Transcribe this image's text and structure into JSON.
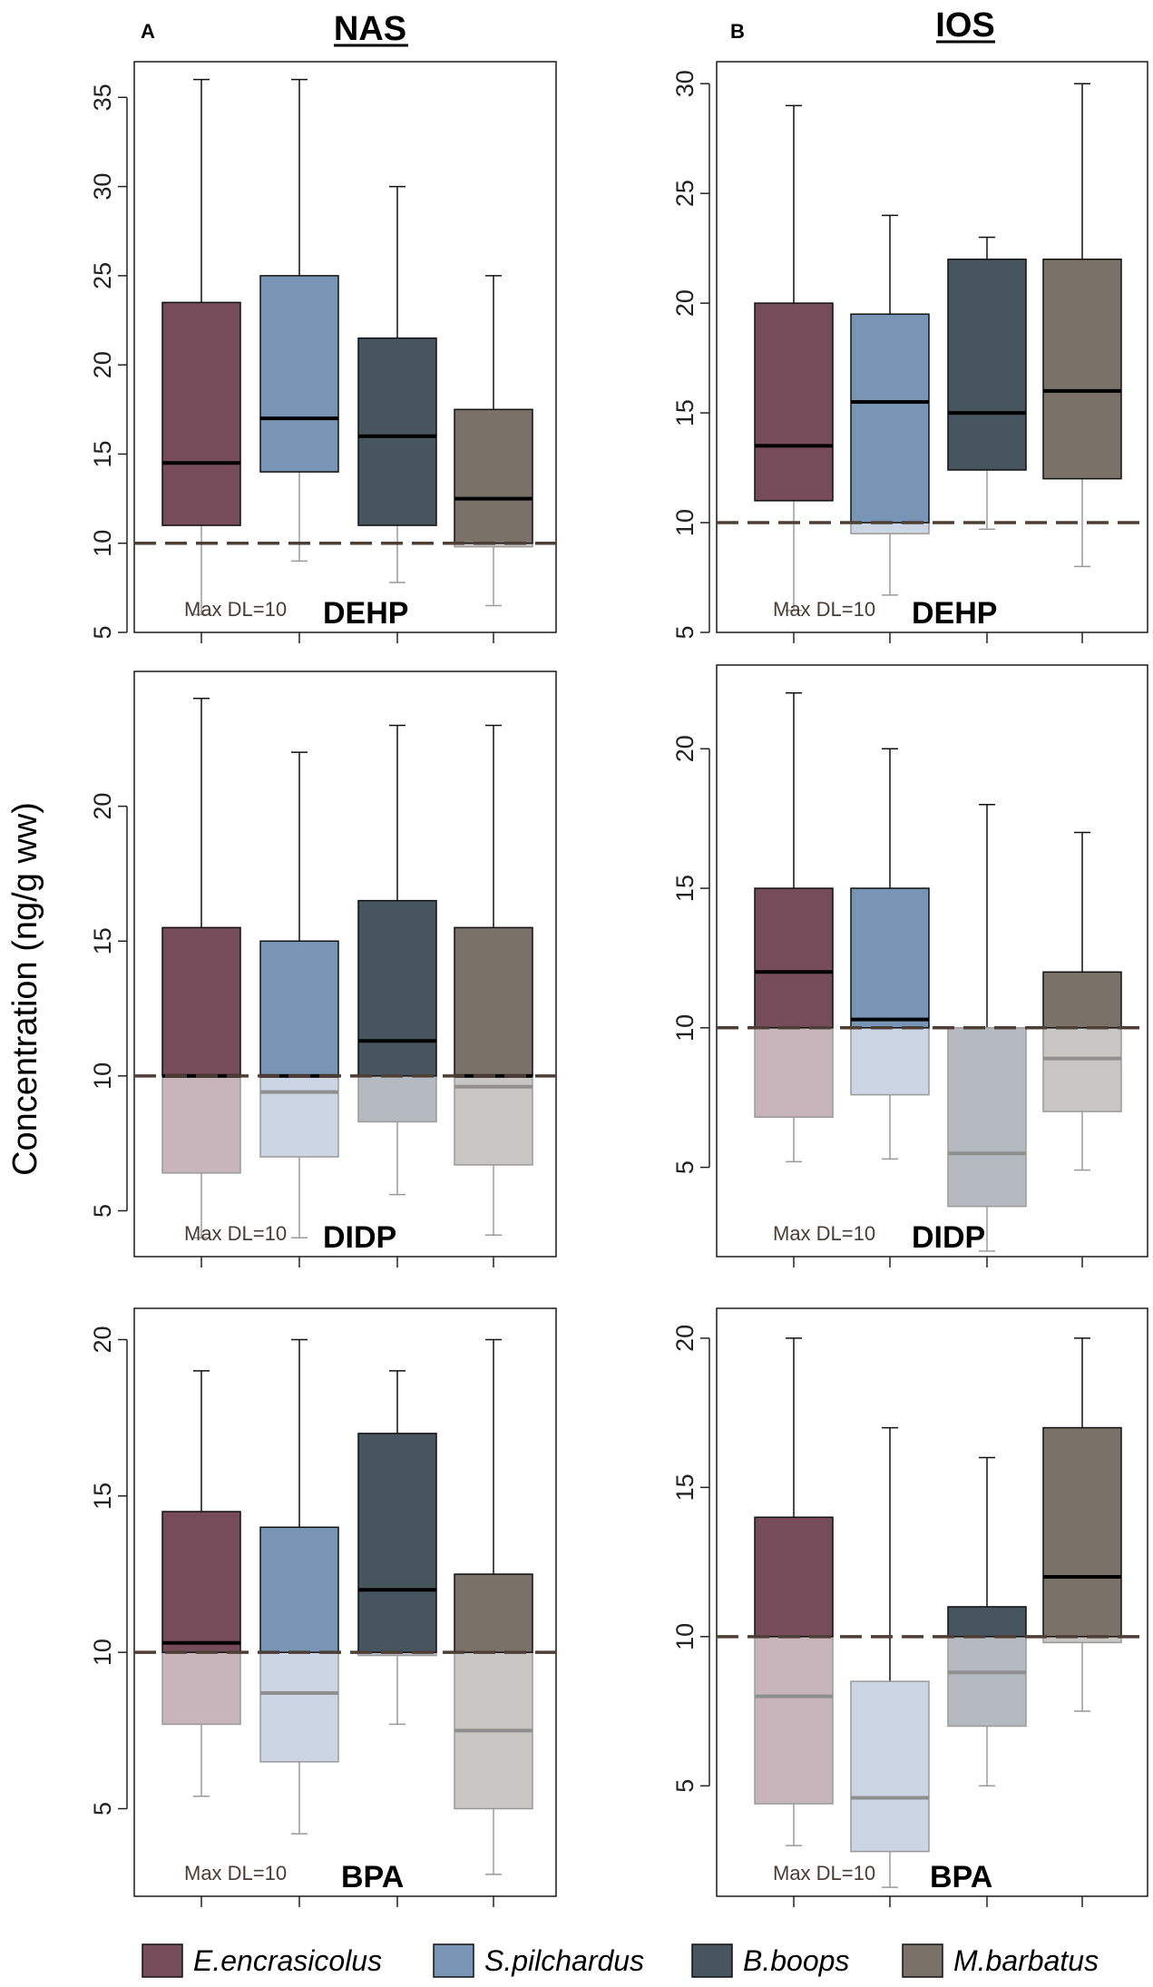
{
  "figure": {
    "ylabel": "Concentration (ng/g ww)",
    "columns": [
      {
        "letter": "A",
        "title": "NAS"
      },
      {
        "letter": "B",
        "title": "IOS"
      }
    ],
    "legend": [
      {
        "name": "E.encrasicolus",
        "color": "#774c5a"
      },
      {
        "name": "S.pilchardus",
        "color": "#7895b5"
      },
      {
        "name": "B.boops",
        "color": "#47555f"
      },
      {
        "name": "M.barbatus",
        "color": "#7a7168"
      }
    ],
    "colors": {
      "detection_limit_line": "#4d3f36",
      "below_dl_fills": [
        "#c8b4bb",
        "#cbd5e3",
        "#b4babf",
        "#c8c6c2"
      ],
      "below_dl_stroke": "#9a9a9a"
    }
  },
  "chart_data": [
    {
      "type": "boxplot",
      "region": "NAS",
      "compound": "DEHP",
      "dl_label": "Max DL=10",
      "detection_limit": 10,
      "ylim": [
        5,
        37
      ],
      "yticks": [
        5,
        10,
        15,
        20,
        25,
        30,
        35
      ],
      "series": [
        {
          "name": "E.encrasicolus",
          "low": 6,
          "q1": 11,
          "median": 14.5,
          "q3": 23.5,
          "high": 36
        },
        {
          "name": "S.pilchardus",
          "low": 9,
          "q1": 14,
          "median": 17,
          "q3": 25,
          "high": 36
        },
        {
          "name": "B.boops",
          "low": 7.8,
          "q1": 11,
          "median": 16,
          "q3": 21.5,
          "high": 30
        },
        {
          "name": "M.barbatus",
          "low": 6.5,
          "q1": 9.8,
          "median": 12.5,
          "q3": 17.5,
          "high": 25
        }
      ]
    },
    {
      "type": "boxplot",
      "region": "IOS",
      "compound": "DEHP",
      "dl_label": "Max DL=10",
      "detection_limit": 10,
      "ylim": [
        5,
        31
      ],
      "yticks": [
        5,
        10,
        15,
        20,
        25,
        30
      ],
      "series": [
        {
          "name": "E.encrasicolus",
          "low": 6,
          "q1": 11,
          "median": 13.5,
          "q3": 20,
          "high": 29
        },
        {
          "name": "S.pilchardus",
          "low": 6.7,
          "q1": 9.5,
          "median": 15.5,
          "q3": 19.5,
          "high": 24
        },
        {
          "name": "B.boops",
          "low": 9.7,
          "q1": 12.4,
          "median": 15,
          "q3": 22,
          "high": 23
        },
        {
          "name": "M.barbatus",
          "low": 8,
          "q1": 12,
          "median": 16,
          "q3": 22,
          "high": 30
        }
      ]
    },
    {
      "type": "boxplot",
      "region": "NAS",
      "compound": "DIDP",
      "dl_label": "Max DL=10",
      "detection_limit": 10,
      "ylim": [
        3.3,
        25
      ],
      "yticks": [
        5,
        10,
        15,
        20
      ],
      "series": [
        {
          "name": "E.encrasicolus",
          "low": 4,
          "q1": 6.4,
          "median": 10,
          "q3": 15.5,
          "high": 24,
          "below_median": 10
        },
        {
          "name": "S.pilchardus",
          "low": 4,
          "q1": 7,
          "median": 10,
          "q3": 15,
          "high": 22,
          "below_median": 9.4
        },
        {
          "name": "B.boops",
          "low": 5.6,
          "q1": 8.3,
          "median": 11.3,
          "q3": 16.5,
          "high": 23,
          "below_median": 10
        },
        {
          "name": "M.barbatus",
          "low": 4.1,
          "q1": 6.7,
          "median": 10,
          "q3": 15.5,
          "high": 23,
          "below_median": 9.6
        }
      ]
    },
    {
      "type": "boxplot",
      "region": "IOS",
      "compound": "DIDP",
      "dl_label": "Max DL=10",
      "detection_limit": 10,
      "ylim": [
        1.8,
        23
      ],
      "yticks": [
        5,
        10,
        15,
        20
      ],
      "series": [
        {
          "name": "E.encrasicolus",
          "low": 5.2,
          "q1": 6.8,
          "median": 12,
          "q3": 15,
          "high": 22
        },
        {
          "name": "S.pilchardus",
          "low": 5.3,
          "q1": 7.6,
          "median": 10.3,
          "q3": 15,
          "high": 20
        },
        {
          "name": "B.boops",
          "low": 2,
          "q1": 3.6,
          "median": 5.5,
          "q3": 10,
          "high": 18
        },
        {
          "name": "M.barbatus",
          "low": 4.9,
          "q1": 7,
          "median": 8.9,
          "q3": 12,
          "high": 17
        }
      ]
    },
    {
      "type": "boxplot",
      "region": "NAS",
      "compound": "BPA",
      "dl_label": "Max DL=10",
      "detection_limit": 10,
      "ylim": [
        2.2,
        21
      ],
      "yticks": [
        5,
        10,
        15,
        20
      ],
      "series": [
        {
          "name": "E.encrasicolus",
          "low": 5.4,
          "q1": 7.7,
          "median": 10.3,
          "q3": 14.5,
          "high": 19
        },
        {
          "name": "S.pilchardus",
          "low": 4.2,
          "q1": 6.5,
          "median": 8.7,
          "q3": 14,
          "high": 20
        },
        {
          "name": "B.boops",
          "low": 7.7,
          "q1": 9.9,
          "median": 12,
          "q3": 17,
          "high": 19
        },
        {
          "name": "M.barbatus",
          "low": 2.9,
          "q1": 5,
          "median": 7.5,
          "q3": 12.5,
          "high": 20
        }
      ]
    },
    {
      "type": "boxplot",
      "region": "IOS",
      "compound": "BPA",
      "dl_label": "Max DL=10",
      "detection_limit": 10,
      "ylim": [
        1.3,
        21
      ],
      "yticks": [
        5,
        10,
        15,
        20
      ],
      "series": [
        {
          "name": "E.encrasicolus",
          "low": 3,
          "q1": 4.4,
          "median": 8,
          "q3": 14,
          "high": 20
        },
        {
          "name": "S.pilchardus",
          "low": 1.6,
          "q1": 2.8,
          "median": 4.6,
          "q3": 8.5,
          "high": 17
        },
        {
          "name": "B.boops",
          "low": 5,
          "q1": 7,
          "median": 8.8,
          "q3": 11,
          "high": 16
        },
        {
          "name": "M.barbatus",
          "low": 7.5,
          "q1": 9.8,
          "median": 12,
          "q3": 17,
          "high": 20
        }
      ]
    }
  ]
}
